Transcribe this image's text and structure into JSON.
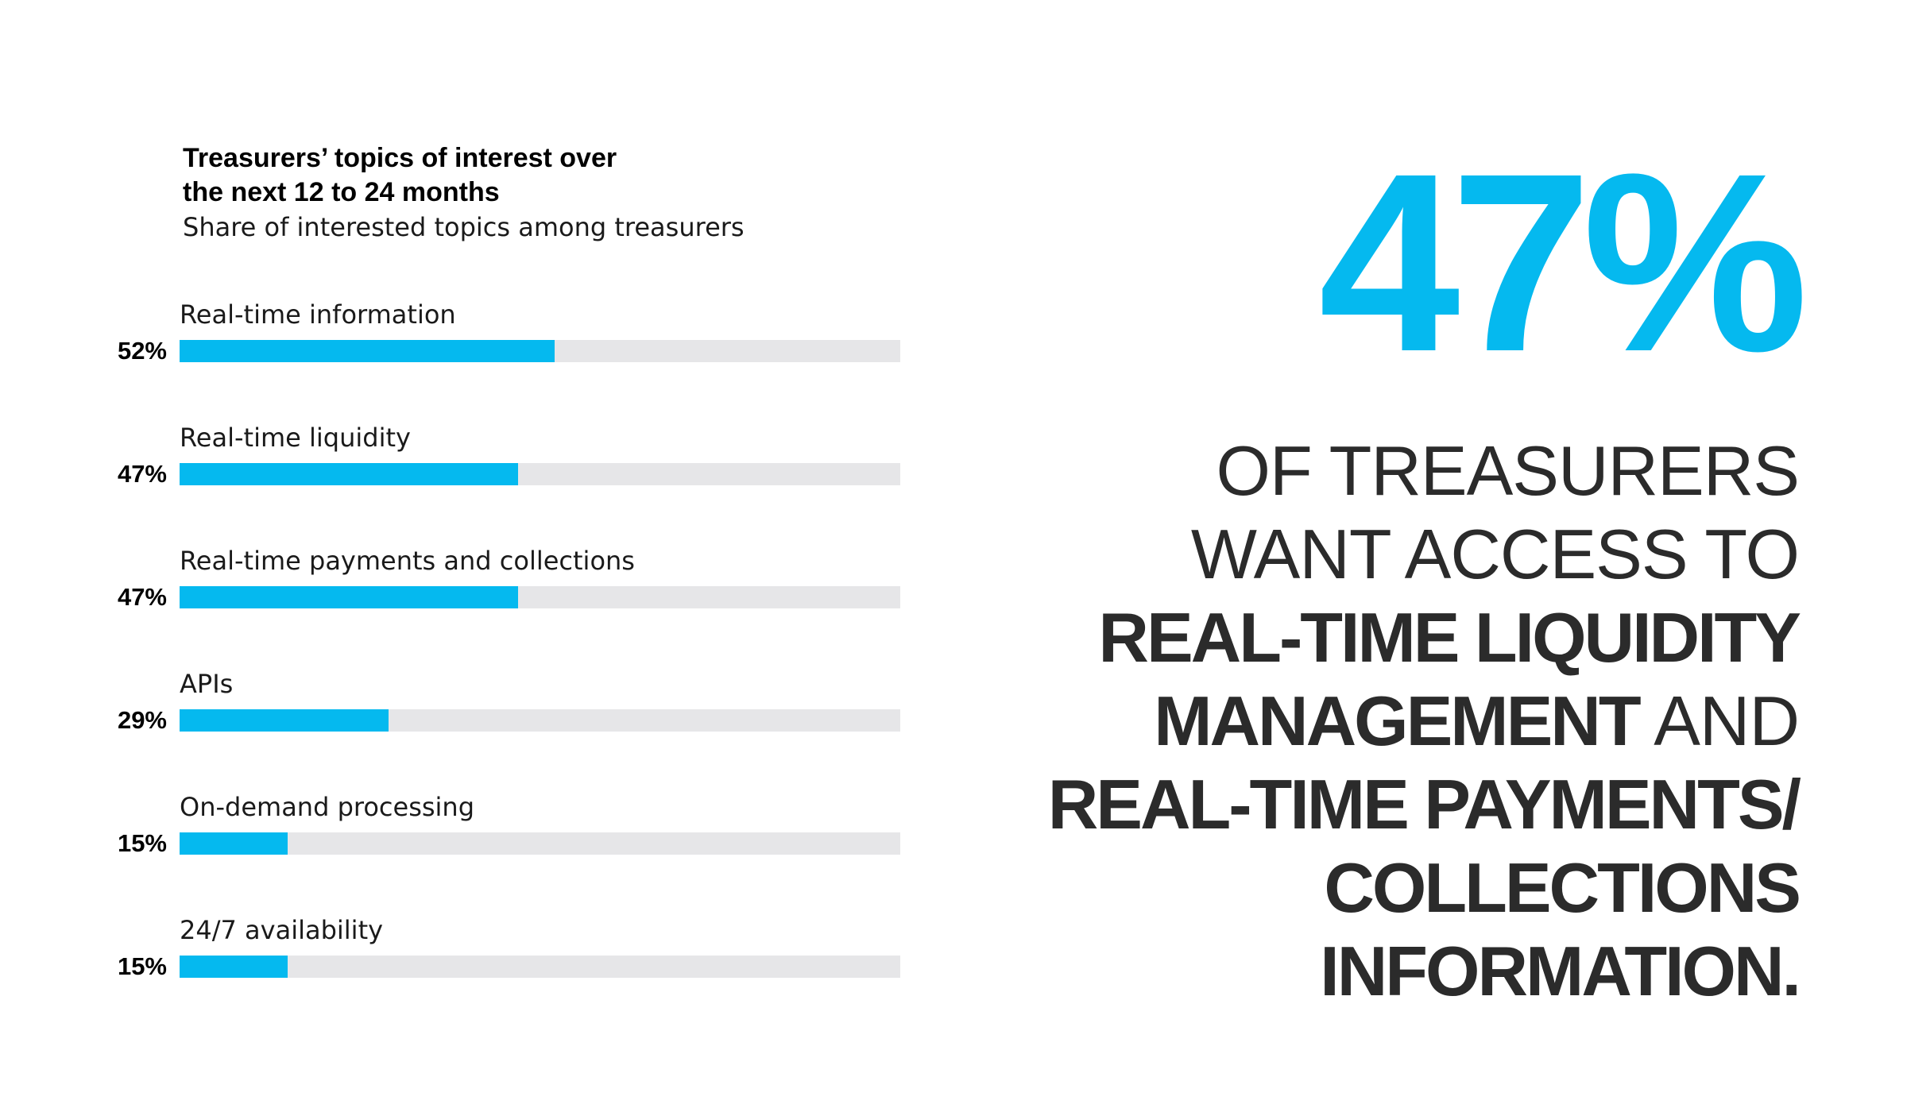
{
  "chart_data": {
    "type": "bar",
    "orientation": "horizontal",
    "title": "Treasurers’ topics of interest over the next 12 to 24 months",
    "subtitle": "Share of interested topics among treasurers",
    "categories": [
      "Real-time information",
      "Real-time liquidity",
      "Real-time payments and collections",
      "APIs",
      "On-demand processing",
      "24/7 availability"
    ],
    "values": [
      52,
      47,
      47,
      29,
      15,
      15
    ],
    "value_labels": [
      "52%",
      "47%",
      "47%",
      "29%",
      "15%",
      "15%"
    ],
    "xlim": [
      0,
      100
    ],
    "grid": false,
    "legend": "none",
    "colors": {
      "bar": "#05b9ef",
      "track": "#e6e6e8"
    }
  },
  "callout": {
    "number": "47%",
    "lines": [
      [
        {
          "text": "OF TREASURERS",
          "style": "light"
        }
      ],
      [
        {
          "text": "WANT ACCESS TO",
          "style": "light"
        }
      ],
      [
        {
          "text": "REAL-TIME LIQUIDITY",
          "style": "heavy"
        }
      ],
      [
        {
          "text": "MANAGEMENT",
          "style": "heavy"
        },
        {
          "text": " AND",
          "style": "light"
        }
      ],
      [
        {
          "text": "REAL-TIME PAYMENTS/",
          "style": "heavy"
        }
      ],
      [
        {
          "text": "COLLECTIONS",
          "style": "heavy"
        }
      ],
      [
        {
          "text": "INFORMATION.",
          "style": "heavy"
        }
      ]
    ],
    "colors": {
      "number": "#05b9ef",
      "text": "#2b2b2b"
    }
  }
}
